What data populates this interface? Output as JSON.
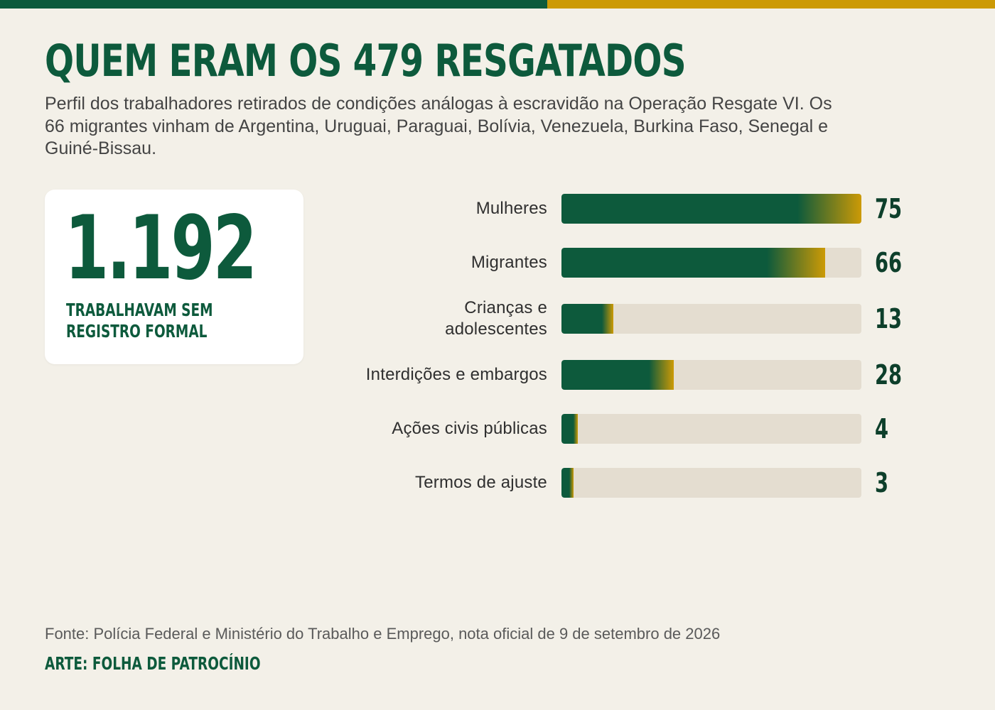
{
  "colors": {
    "background": "#f3f0e8",
    "primary_green": "#0d5a3c",
    "accent_gold": "#cc9a06",
    "track": "#e4ddd0",
    "card": "#ffffff"
  },
  "header": {
    "title": "QUEM ERAM OS 479 RESGATADOS",
    "subtitle": "Perfil dos trabalhadores retirados de condições análogas à escravidão na Operação Resgate VI. Os 66 migrantes vinham de Argentina, Uruguai, Paraguai, Bolívia, Venezuela, Burkina Faso, Senegal e Guiné-Bissau."
  },
  "highlight_card": {
    "number": "1.192",
    "label": "TRABALHAVAM SEM REGISTRO FORMAL"
  },
  "chart_data": {
    "type": "bar",
    "orientation": "horizontal",
    "categories": [
      "Mulheres",
      "Migrantes",
      "Crianças e adolescentes",
      "Interdições e embargos",
      "Ações civis públicas",
      "Termos de ajuste"
    ],
    "values": [
      75,
      66,
      13,
      28,
      4,
      3
    ],
    "value_labels": [
      "75",
      "66",
      "13",
      "28",
      "4",
      "3"
    ],
    "xlim": [
      0,
      75
    ],
    "grid": false,
    "legend": "none",
    "title": "",
    "xlabel": "",
    "ylabel": ""
  },
  "footer": {
    "source": "Fonte: Polícia Federal e Ministério do Trabalho e Emprego, nota oficial de 9 de setembro de 2026",
    "credit": "ARTE: FOLHA DE PATROCÍNIO"
  }
}
